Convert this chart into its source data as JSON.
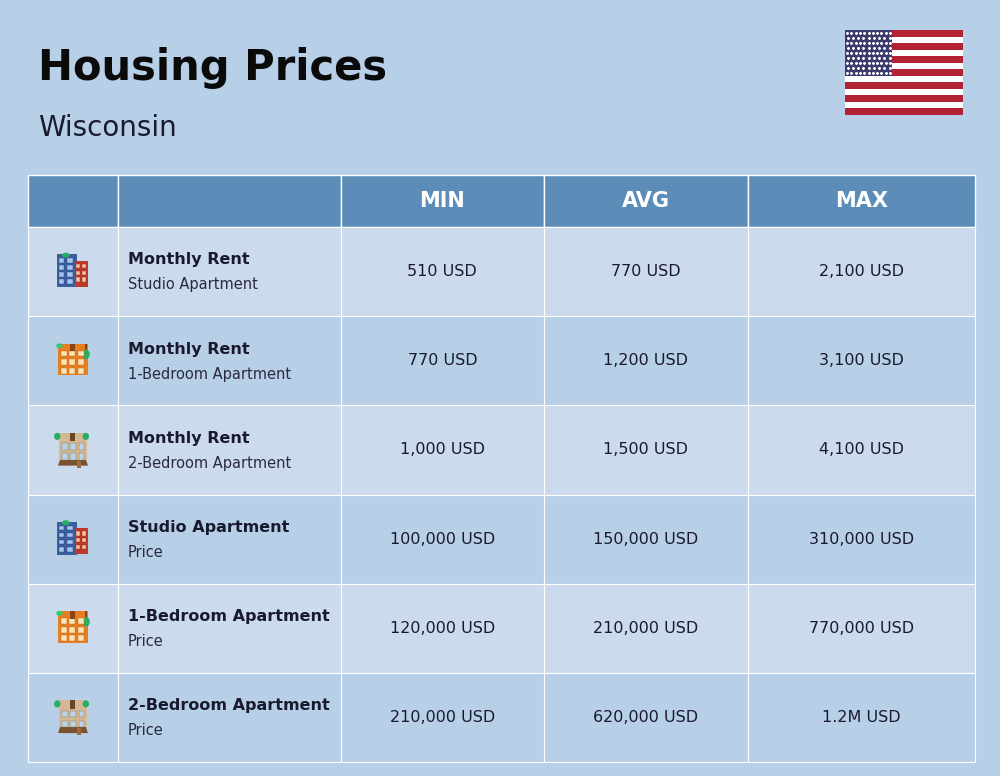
{
  "title": "Housing Prices",
  "subtitle": "Wisconsin",
  "background_color": "#b8cfe8",
  "header_color": "#5b8db8",
  "header_text_color": "#ffffff",
  "cell_text_color": "#1a1a2e",
  "header_labels": [
    "MIN",
    "AVG",
    "MAX"
  ],
  "row_bg_colors": [
    "#ccdaed",
    "#b8cfe8"
  ],
  "rows": [
    {
      "bold_text": "Monthly Rent",
      "sub_text": "Studio Apartment",
      "min": "510 USD",
      "avg": "770 USD",
      "max": "2,100 USD",
      "icon_type": "studio_blue"
    },
    {
      "bold_text": "Monthly Rent",
      "sub_text": "1-Bedroom Apartment",
      "min": "770 USD",
      "avg": "1,200 USD",
      "max": "3,100 USD",
      "icon_type": "one_bed_orange"
    },
    {
      "bold_text": "Monthly Rent",
      "sub_text": "2-Bedroom Apartment",
      "min": "1,000 USD",
      "avg": "1,500 USD",
      "max": "4,100 USD",
      "icon_type": "two_bed_tan"
    },
    {
      "bold_text": "Studio Apartment",
      "sub_text": "Price",
      "min": "100,000 USD",
      "avg": "150,000 USD",
      "max": "310,000 USD",
      "icon_type": "studio_blue"
    },
    {
      "bold_text": "1-Bedroom Apartment",
      "sub_text": "Price",
      "min": "120,000 USD",
      "avg": "210,000 USD",
      "max": "770,000 USD",
      "icon_type": "one_bed_orange"
    },
    {
      "bold_text": "2-Bedroom Apartment",
      "sub_text": "Price",
      "min": "210,000 USD",
      "avg": "620,000 USD",
      "max": "1.2M USD",
      "icon_type": "two_bed_tan"
    }
  ]
}
